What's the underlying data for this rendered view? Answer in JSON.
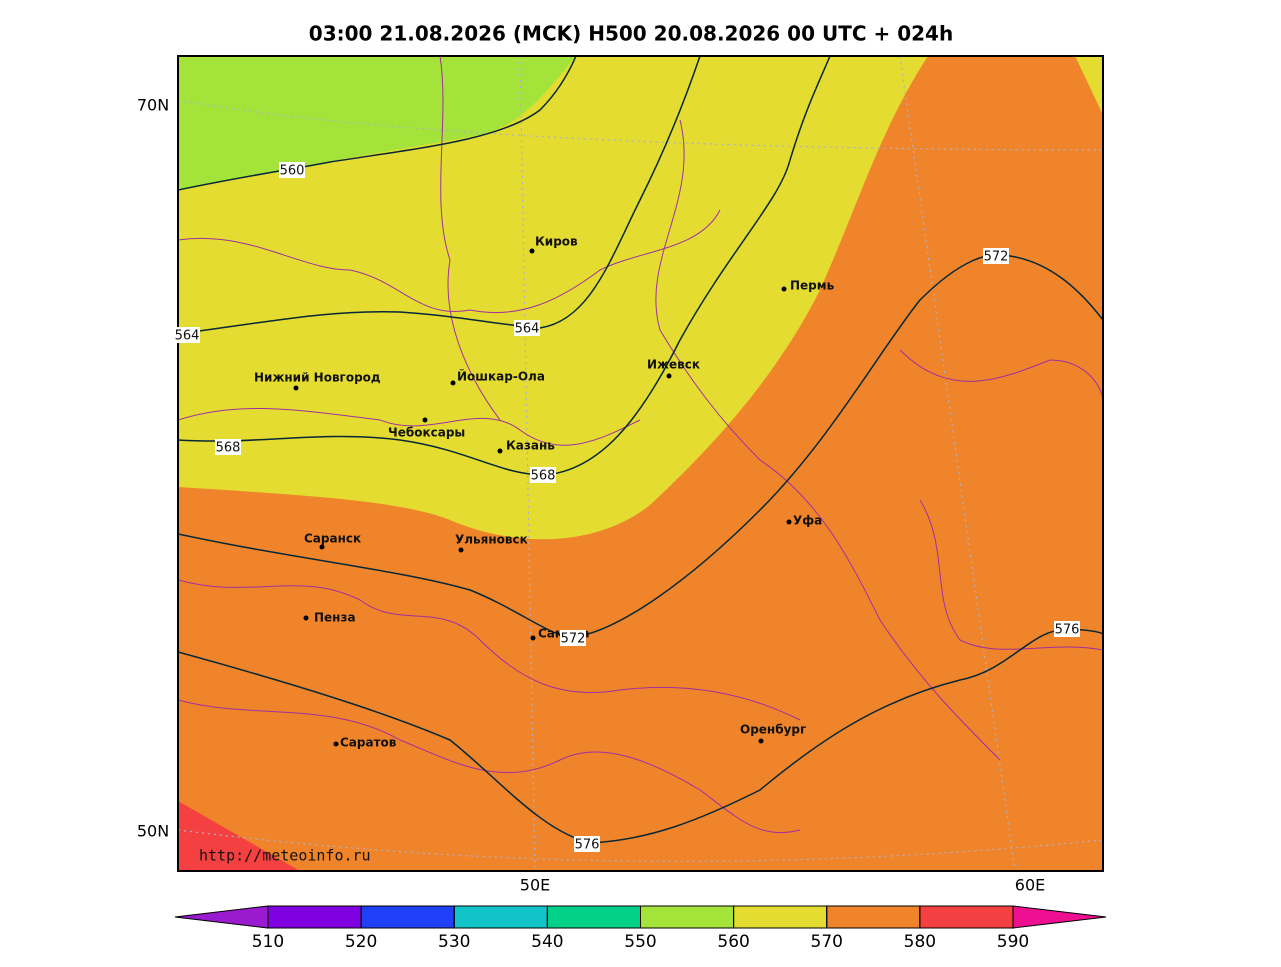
{
  "title": "03:00 21.08.2026 (MCK) H500  20.08.2026 00 UTC + 024h",
  "lat_labels": [
    "70N",
    "50N"
  ],
  "lon_labels": [
    "50E",
    "60E"
  ],
  "cities": [
    "Киров",
    "Пермь",
    "Нижний Новгород",
    "Йошкар-Ола",
    "Ижевск",
    "Чебоксары",
    "Казань",
    "Саранск",
    "Ульяновск",
    "Уфа",
    "Пенза",
    "Самара",
    "Оренбург",
    "Саратов"
  ],
  "contour_labels": [
    "560",
    "564",
    "564",
    "568",
    "568",
    "572",
    "572",
    "576",
    "576"
  ],
  "url": "http://meteoinfo.ru",
  "colorbar": {
    "ticks": [
      510,
      520,
      530,
      540,
      550,
      560,
      570,
      580,
      590
    ],
    "colors": [
      "#9a1ad0",
      "#7f00e0",
      "#2040f8",
      "#10c4c8",
      "#00d088",
      "#a4e43a",
      "#e4dc30",
      "#f0842a",
      "#f44040",
      "#ee1090"
    ]
  }
}
